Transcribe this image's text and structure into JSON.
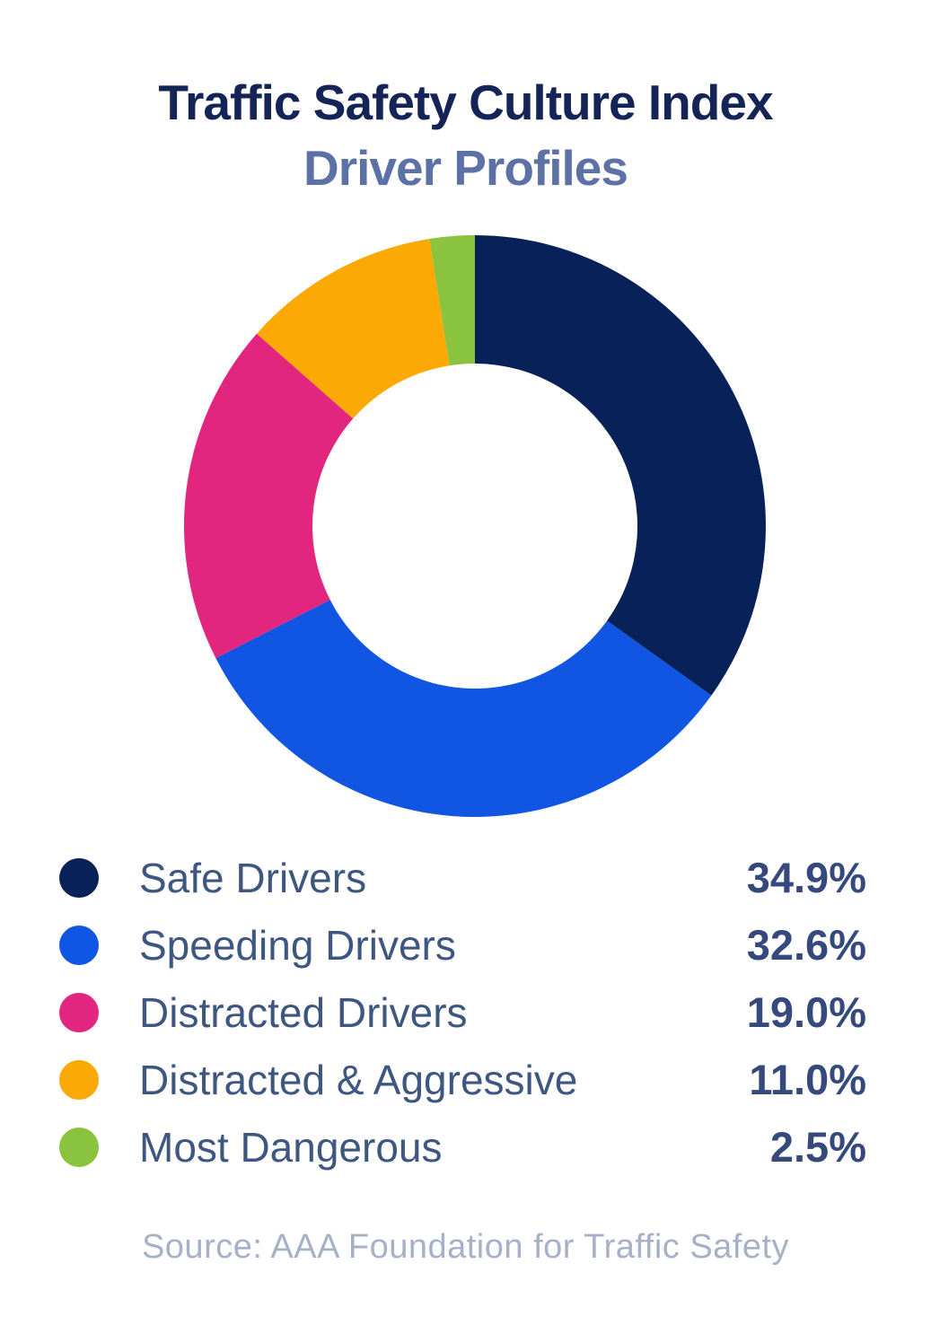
{
  "title": {
    "line1": "Traffic Safety Culture Index",
    "line2": "Driver Profiles"
  },
  "source": "Source: AAA Foundation for Traffic Safety",
  "chart_data": {
    "type": "pie",
    "subtype": "donut",
    "title": "Traffic Safety Culture Index",
    "subtitle": "Driver Profiles",
    "categories": [
      "Safe Drivers",
      "Speeding Drivers",
      "Distracted Drivers",
      "Distracted & Aggressive",
      "Most Dangerous"
    ],
    "values": [
      34.9,
      32.6,
      19.0,
      11.0,
      2.5
    ],
    "value_labels": [
      "34.9%",
      "32.6%",
      "19.0%",
      "11.0%",
      "2.5%"
    ],
    "colors": [
      "#082158",
      "#1156e2",
      "#e2267f",
      "#fda905",
      "#8ac43e"
    ],
    "start_angle_deg": 0,
    "direction": "clockwise",
    "inner_radius_ratio": 0.56,
    "legend_position": "bottom",
    "source": "Source: AAA Foundation for Traffic Safety"
  }
}
